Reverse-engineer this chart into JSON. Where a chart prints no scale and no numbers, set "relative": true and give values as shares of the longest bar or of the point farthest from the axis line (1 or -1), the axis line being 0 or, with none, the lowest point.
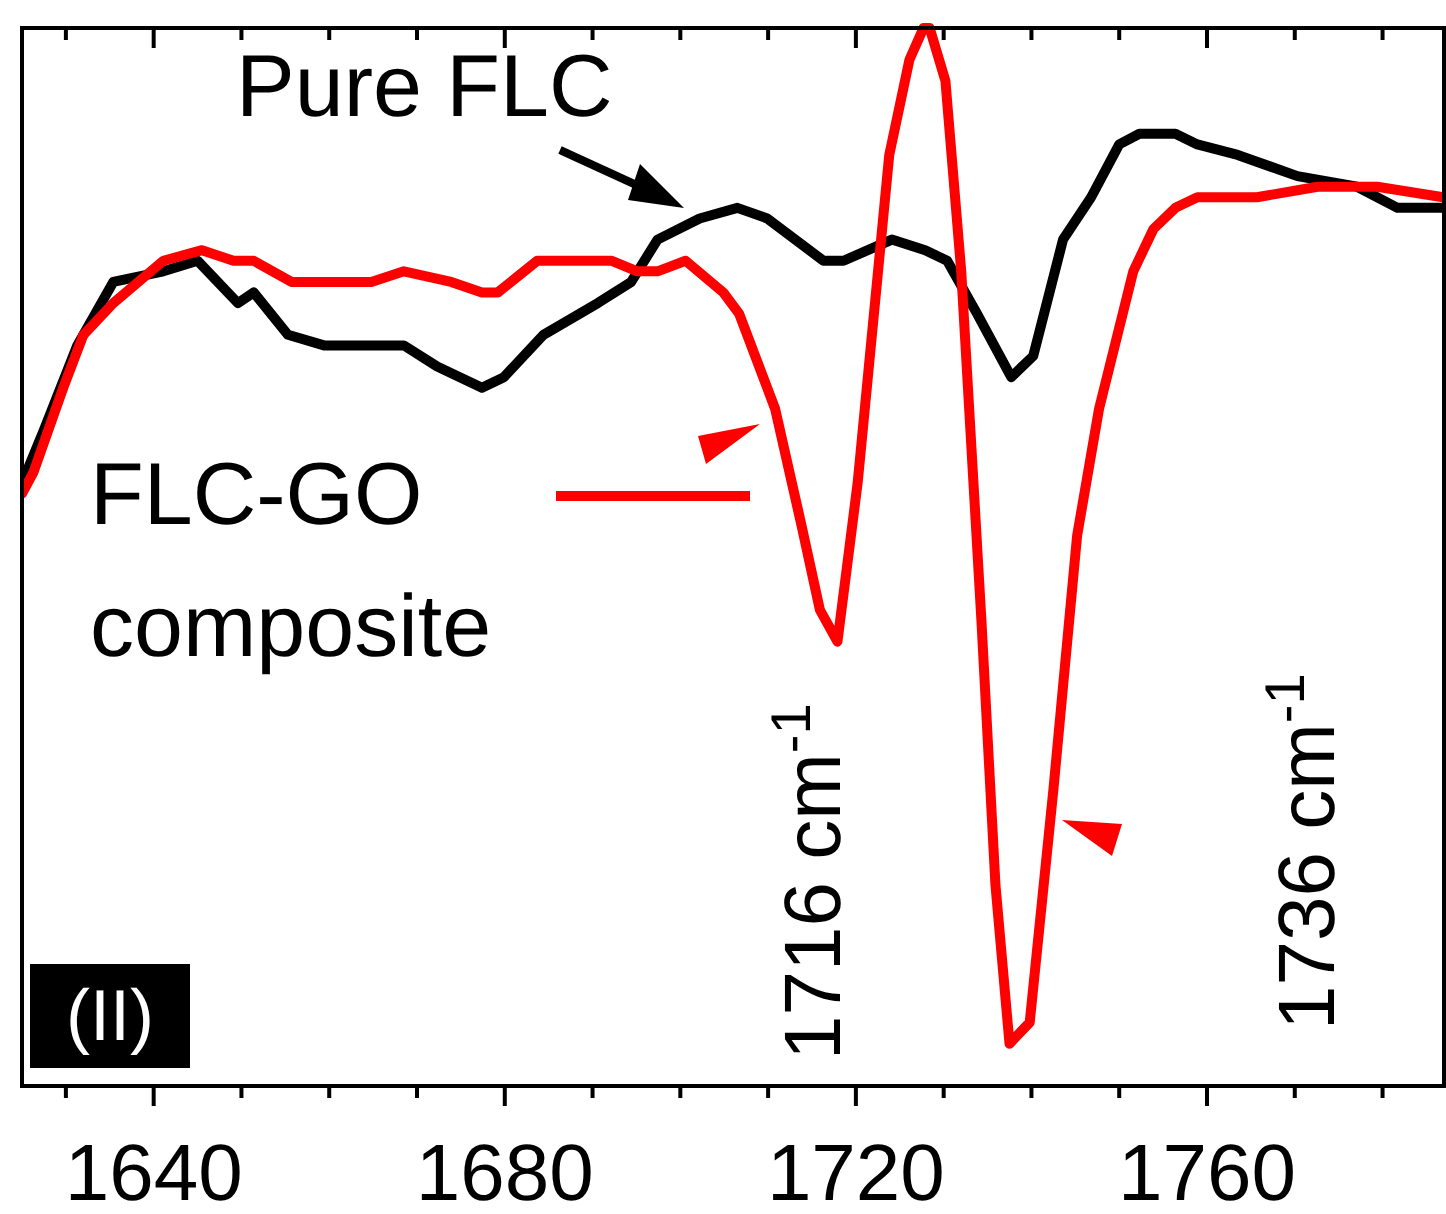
{
  "chart_data": {
    "type": "line",
    "relative": true,
    "xlim": [
      1625,
      1787
    ],
    "xticks": [
      {
        "value": 1630,
        "label": null
      },
      1640,
      {
        "value": 1650,
        "label": null
      },
      {
        "value": 1660,
        "label": null
      },
      {
        "value": 1670,
        "label": null
      },
      1680,
      {
        "value": 1690,
        "label": null
      },
      {
        "value": 1700,
        "label": null
      },
      {
        "value": 1710,
        "label": null
      },
      1720,
      {
        "value": 1730,
        "label": null
      },
      {
        "value": 1740,
        "label": null
      },
      {
        "value": 1750,
        "label": null
      },
      1760,
      {
        "value": 1770,
        "label": null
      },
      {
        "value": 1780,
        "label": null
      }
    ],
    "grid": false,
    "legend": "left",
    "marker": "none",
    "line_style": "solid",
    "series": [
      {
        "name": "Pure FLC",
        "color": "#000000",
        "x": [
          1625.0,
          1627.5,
          1631.3,
          1635.4,
          1641.1,
          1645.0,
          1649.6,
          1651.4,
          1655.3,
          1659.4,
          1664.8,
          1668.5,
          1672.3,
          1677.4,
          1679.9,
          1684.4,
          1690.6,
          1694.4,
          1697.4,
          1702.2,
          1706.5,
          1709.9,
          1716.3,
          1718.6,
          1724.1,
          1727.9,
          1730.4,
          1733.8,
          1737.7,
          1740.2,
          1743.6,
          1746.8,
          1750.0,
          1752.3,
          1756.4,
          1758.9,
          1763.5,
          1770.3,
          1777.1,
          1781.7,
          1786.9
        ],
        "values": [
          0.57,
          0.62,
          0.7,
          0.76,
          0.77,
          0.78,
          0.74,
          0.75,
          0.71,
          0.7,
          0.7,
          0.7,
          0.68,
          0.66,
          0.67,
          0.71,
          0.74,
          0.76,
          0.8,
          0.82,
          0.83,
          0.82,
          0.78,
          0.78,
          0.8,
          0.79,
          0.78,
          0.73,
          0.67,
          0.69,
          0.8,
          0.84,
          0.89,
          0.9,
          0.9,
          0.89,
          0.88,
          0.86,
          0.85,
          0.83,
          0.83
        ]
      },
      {
        "name": "FLC-GO composite",
        "color": "#ff0000",
        "x": [
          1625.0,
          1626.3,
          1629.7,
          1632.0,
          1635.4,
          1641.1,
          1645.5,
          1649.1,
          1651.4,
          1655.7,
          1664.8,
          1668.5,
          1673.9,
          1677.4,
          1679.2,
          1683.7,
          1686.7,
          1692.2,
          1695.1,
          1697.4,
          1700.6,
          1704.9,
          1706.7,
          1710.8,
          1713.8,
          1715.9,
          1717.9,
          1720.2,
          1723.8,
          1726.1,
          1727.7,
          1728.4,
          1730.2,
          1732.0,
          1734.3,
          1735.9,
          1737.5,
          1739.8,
          1742.5,
          1745.2,
          1747.7,
          1751.6,
          1753.9,
          1756.4,
          1758.9,
          1765.7,
          1772.6,
          1779.4,
          1786.9
        ],
        "values": [
          0.56,
          0.58,
          0.66,
          0.71,
          0.74,
          0.78,
          0.79,
          0.78,
          0.78,
          0.76,
          0.76,
          0.77,
          0.76,
          0.75,
          0.75,
          0.78,
          0.78,
          0.78,
          0.77,
          0.77,
          0.78,
          0.75,
          0.73,
          0.64,
          0.53,
          0.45,
          0.42,
          0.57,
          0.88,
          0.97,
          1,
          1,
          0.95,
          0.77,
          0.44,
          0.19,
          0.04,
          0.06,
          0.28,
          0.52,
          0.64,
          0.77,
          0.81,
          0.83,
          0.84,
          0.84,
          0.85,
          0.85,
          0.84
        ]
      }
    ],
    "annotations": [
      "1716 cm$^{-1}$",
      "1736 cm$^{-1}$",
      "(II)"
    ]
  }
}
